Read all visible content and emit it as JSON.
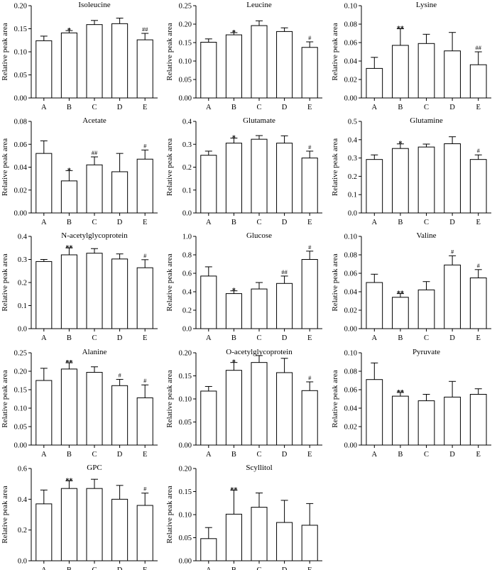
{
  "figure": {
    "y_label": "Relative peak area",
    "categories": [
      "A",
      "B",
      "C",
      "D",
      "E"
    ]
  },
  "chart_data": [
    {
      "type": "bar",
      "title": "Isoleucine",
      "categories": [
        "A",
        "B",
        "C",
        "D",
        "E"
      ],
      "values": [
        0.124,
        0.141,
        0.159,
        0.161,
        0.126
      ],
      "errors": [
        0.01,
        0.005,
        0.009,
        0.012,
        0.014
      ],
      "marks": [
        "",
        "*",
        "",
        "",
        "##"
      ],
      "ylabel": "Relative peak area",
      "ylim": [
        0,
        0.2
      ],
      "yticks": [
        "0.00",
        "0.05",
        "0.10",
        "0.15",
        "0.20"
      ]
    },
    {
      "type": "bar",
      "title": "Leucine",
      "categories": [
        "A",
        "B",
        "C",
        "D",
        "E"
      ],
      "values": [
        0.151,
        0.171,
        0.196,
        0.18,
        0.137
      ],
      "errors": [
        0.009,
        0.006,
        0.013,
        0.01,
        0.015
      ],
      "marks": [
        "",
        "*",
        "",
        "",
        "#"
      ],
      "ylabel": "Relative peak area",
      "ylim": [
        0,
        0.25
      ],
      "yticks": [
        "0.00",
        "0.05",
        "0.10",
        "0.15",
        "0.20",
        "0.25"
      ]
    },
    {
      "type": "bar",
      "title": "Lysine",
      "categories": [
        "A",
        "B",
        "C",
        "D",
        "E"
      ],
      "values": [
        0.032,
        0.057,
        0.059,
        0.051,
        0.036
      ],
      "errors": [
        0.012,
        0.018,
        0.01,
        0.02,
        0.014
      ],
      "marks": [
        "",
        "**",
        "",
        "",
        "##"
      ],
      "ylabel": "Relative peak area",
      "ylim": [
        0,
        0.1
      ],
      "yticks": [
        "0.00",
        "0.02",
        "0.04",
        "0.06",
        "0.08",
        "0.10"
      ]
    },
    {
      "type": "bar",
      "title": "Acetate",
      "categories": [
        "A",
        "B",
        "C",
        "D",
        "E"
      ],
      "values": [
        0.052,
        0.028,
        0.042,
        0.036,
        0.047
      ],
      "errors": [
        0.011,
        0.009,
        0.007,
        0.016,
        0.008
      ],
      "marks": [
        "",
        "*",
        "##",
        "",
        "#"
      ],
      "ylabel": "Relative peak area",
      "ylim": [
        0,
        0.08
      ],
      "yticks": [
        "0.00",
        "0.02",
        "0.04",
        "0.06",
        "0.08"
      ]
    },
    {
      "type": "bar",
      "title": "Glutamate",
      "categories": [
        "A",
        "B",
        "C",
        "D",
        "E"
      ],
      "values": [
        0.252,
        0.305,
        0.322,
        0.305,
        0.24
      ],
      "errors": [
        0.018,
        0.022,
        0.016,
        0.032,
        0.03
      ],
      "marks": [
        "",
        "*",
        "",
        "",
        "#"
      ],
      "ylabel": "Relative peak area",
      "ylim": [
        0,
        0.4
      ],
      "yticks": [
        "0.0",
        "0.1",
        "0.2",
        "0.3",
        "0.4"
      ]
    },
    {
      "type": "bar",
      "title": "Glutamine",
      "categories": [
        "A",
        "B",
        "C",
        "D",
        "E"
      ],
      "values": [
        0.292,
        0.352,
        0.36,
        0.378,
        0.292
      ],
      "errors": [
        0.025,
        0.025,
        0.016,
        0.038,
        0.025
      ],
      "marks": [
        "",
        "*",
        "",
        "",
        "#"
      ],
      "ylabel": "Relative peak area",
      "ylim": [
        0,
        0.5
      ],
      "yticks": [
        "0.0",
        "0.1",
        "0.2",
        "0.3",
        "0.4",
        "0.5"
      ]
    },
    {
      "type": "bar",
      "title": "N-acetylglycoprotein",
      "categories": [
        "A",
        "B",
        "C",
        "D",
        "E"
      ],
      "values": [
        0.291,
        0.32,
        0.327,
        0.302,
        0.264
      ],
      "errors": [
        0.009,
        0.03,
        0.02,
        0.022,
        0.035
      ],
      "marks": [
        "",
        "**",
        "",
        "",
        "#"
      ],
      "ylabel": "Relative peak area",
      "ylim": [
        0,
        0.4
      ],
      "yticks": [
        "0.0",
        "0.1",
        "0.2",
        "0.3",
        "0.4"
      ]
    },
    {
      "type": "bar",
      "title": "Glucose",
      "categories": [
        "A",
        "B",
        "C",
        "D",
        "E"
      ],
      "values": [
        0.57,
        0.38,
        0.43,
        0.49,
        0.75
      ],
      "errors": [
        0.1,
        0.03,
        0.07,
        0.08,
        0.09
      ],
      "marks": [
        "",
        "*",
        "",
        "##",
        "#"
      ],
      "ylabel": "Relative peak area",
      "ylim": [
        0,
        1.0
      ],
      "yticks": [
        "0.0",
        "0.2",
        "0.4",
        "0.6",
        "0.8",
        "1.0"
      ]
    },
    {
      "type": "bar",
      "title": "Valine",
      "categories": [
        "A",
        "B",
        "C",
        "D",
        "E"
      ],
      "values": [
        0.05,
        0.034,
        0.042,
        0.069,
        0.055
      ],
      "errors": [
        0.009,
        0.004,
        0.009,
        0.01,
        0.009
      ],
      "marks": [
        "",
        "**",
        "",
        "#",
        "#"
      ],
      "ylabel": "Relative peak area",
      "ylim": [
        0,
        0.1
      ],
      "yticks": [
        "0.00",
        "0.02",
        "0.04",
        "0.06",
        "0.08",
        "0.10"
      ]
    },
    {
      "type": "bar",
      "title": "Alanine",
      "categories": [
        "A",
        "B",
        "C",
        "D",
        "E"
      ],
      "values": [
        0.175,
        0.206,
        0.197,
        0.161,
        0.128
      ],
      "errors": [
        0.033,
        0.017,
        0.015,
        0.017,
        0.035
      ],
      "marks": [
        "",
        "**",
        "",
        "#",
        "#"
      ],
      "ylabel": "Relative peak area",
      "ylim": [
        0,
        0.25
      ],
      "yticks": [
        "0.00",
        "0.05",
        "0.10",
        "0.15",
        "0.20",
        "0.25"
      ]
    },
    {
      "type": "bar",
      "title": "O-acetylglycoprotein",
      "categories": [
        "A",
        "B",
        "C",
        "D",
        "E"
      ],
      "values": [
        0.117,
        0.162,
        0.179,
        0.157,
        0.118
      ],
      "errors": [
        0.01,
        0.017,
        0.015,
        0.031,
        0.019
      ],
      "marks": [
        "",
        "*",
        "",
        "",
        "#"
      ],
      "ylabel": "Relative peak area",
      "ylim": [
        0,
        0.2
      ],
      "yticks": [
        "0.00",
        "0.05",
        "0.10",
        "0.15",
        "0.20"
      ]
    },
    {
      "type": "bar",
      "title": "Pyruvate",
      "categories": [
        "A",
        "B",
        "C",
        "D",
        "E"
      ],
      "values": [
        0.071,
        0.053,
        0.048,
        0.052,
        0.055
      ],
      "errors": [
        0.018,
        0.004,
        0.007,
        0.017,
        0.006
      ],
      "marks": [
        "",
        "**",
        "",
        "",
        ""
      ],
      "ylabel": "Relative peak area",
      "ylim": [
        0,
        0.1
      ],
      "yticks": [
        "0.00",
        "0.02",
        "0.04",
        "0.06",
        "0.08",
        "0.10"
      ]
    },
    {
      "type": "bar",
      "title": "GPC",
      "categories": [
        "A",
        "B",
        "C",
        "D",
        "E"
      ],
      "values": [
        0.37,
        0.47,
        0.47,
        0.4,
        0.36
      ],
      "errors": [
        0.09,
        0.05,
        0.06,
        0.09,
        0.08
      ],
      "marks": [
        "",
        "**",
        "",
        "",
        "#"
      ],
      "ylabel": "Relative peak area",
      "ylim": [
        0,
        0.6
      ],
      "yticks": [
        "0.0",
        "0.2",
        "0.4",
        "0.6"
      ]
    },
    {
      "type": "bar",
      "title": "Scyllitol",
      "categories": [
        "A",
        "B",
        "C",
        "D",
        "E"
      ],
      "values": [
        0.048,
        0.101,
        0.116,
        0.083,
        0.077
      ],
      "errors": [
        0.024,
        0.052,
        0.031,
        0.048,
        0.047
      ],
      "marks": [
        "",
        "**",
        "",
        "",
        ""
      ],
      "ylabel": "Relative peak area",
      "ylim": [
        0,
        0.2
      ],
      "yticks": [
        "0.00",
        "0.05",
        "0.10",
        "0.15",
        "0.20"
      ]
    }
  ]
}
